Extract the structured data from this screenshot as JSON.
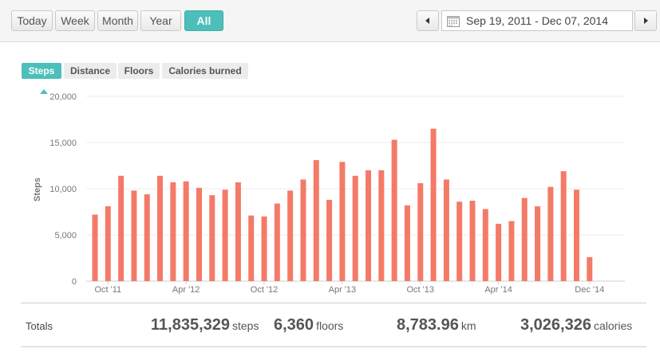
{
  "range_buttons": [
    {
      "label": "Today",
      "active": false
    },
    {
      "label": "Week",
      "active": false
    },
    {
      "label": "Month",
      "active": false
    },
    {
      "label": "Year",
      "active": false
    },
    {
      "label": "All",
      "active": true
    }
  ],
  "date_range": "Sep 19, 2011 - Dec 07, 2014",
  "metric_tabs": [
    {
      "label": "Steps",
      "active": true
    },
    {
      "label": "Distance",
      "active": false
    },
    {
      "label": "Floors",
      "active": false
    },
    {
      "label": "Calories burned",
      "active": false
    }
  ],
  "colors": {
    "accent": "#4cbfba",
    "bar": "#f47a68"
  },
  "chart_data": {
    "type": "bar",
    "ylabel": "Steps",
    "ylim": [
      0,
      20000
    ],
    "yticks": [
      "0",
      "5,000",
      "10,000",
      "15,000",
      "20,000"
    ],
    "xtick_labels": [
      "Oct '11",
      "Apr '12",
      "Oct '12",
      "Apr '13",
      "Oct '13",
      "Apr '14",
      "Dec '14"
    ],
    "categories": [
      "Sep '11",
      "Oct '11",
      "Nov '11",
      "Dec '11",
      "Jan '12",
      "Feb '12",
      "Mar '12",
      "Apr '12",
      "May '12",
      "Jun '12",
      "Jul '12",
      "Aug '12",
      "Sep '12",
      "Oct '12",
      "Nov '12",
      "Dec '12",
      "Jan '13",
      "Feb '13",
      "Mar '13",
      "Apr '13",
      "May '13",
      "Jun '13",
      "Jul '13",
      "Aug '13",
      "Sep '13",
      "Oct '13",
      "Nov '13",
      "Dec '13",
      "Jan '14",
      "Feb '14",
      "Mar '14",
      "Apr '14",
      "May '14",
      "Jun '14",
      "Jul '14",
      "Aug '14",
      "Sep '14",
      "Oct '14",
      "Nov '14",
      "Dec '14"
    ],
    "values": [
      7200,
      8100,
      11400,
      9800,
      9400,
      11400,
      10700,
      10800,
      10100,
      9300,
      9900,
      10700,
      7100,
      7000,
      8400,
      9800,
      11000,
      13100,
      8800,
      12900,
      11400,
      12000,
      12000,
      15300,
      8200,
      10600,
      16500,
      11000,
      8600,
      8700,
      7800,
      6200,
      6500,
      9000,
      8100,
      10200,
      11900,
      9900,
      2600,
      0
    ]
  },
  "totals": {
    "label": "Totals",
    "steps": {
      "value": "11,835,329",
      "unit": "steps"
    },
    "floors": {
      "value": "6,360",
      "unit": "floors"
    },
    "distance": {
      "value": "8,783.96",
      "unit": "km"
    },
    "calories": {
      "value": "3,026,326",
      "unit": "calories"
    }
  }
}
